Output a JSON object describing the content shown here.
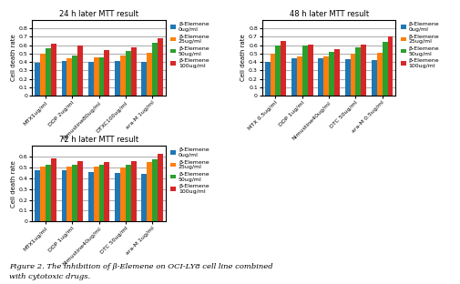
{
  "chart_data": [
    {
      "type": "bar",
      "title": "24 h later MTT result",
      "categories": [
        "MTX1ug/ml",
        "DDP 2ug/ml",
        "Nimustine80ug/ml",
        "DTXC100ug/ml",
        "ara-M 1ug/ml"
      ],
      "series": [
        {
          "name": "β-Elemene\n0ug/ml",
          "values": [
            0.39,
            0.41,
            0.4,
            0.41,
            0.4
          ]
        },
        {
          "name": "β-Elemene\n25ug/ml",
          "values": [
            0.5,
            0.45,
            0.46,
            0.48,
            0.51
          ]
        },
        {
          "name": "β-Elemene\n50ug/ml",
          "values": [
            0.56,
            0.48,
            0.46,
            0.53,
            0.63
          ]
        },
        {
          "name": "β-Elemene\n100ug/ml",
          "values": [
            0.62,
            0.6,
            0.54,
            0.58,
            0.68
          ]
        }
      ],
      "y_label": "Cell death rate",
      "ylim": [
        0,
        0.9
      ],
      "yticks": [
        0,
        0.1,
        0.2,
        0.3,
        0.4,
        0.5,
        0.6,
        0.7,
        0.8
      ],
      "grid": true,
      "legend": "upper left"
    },
    {
      "type": "bar",
      "title": "48 h later MTT result",
      "categories": [
        "MTX 0.5ug/ml",
        "DDP 1ug/ml",
        "Nimustine40ug/ml",
        "DTC 50ug/ml",
        "ara-M 0.5ug/ml"
      ],
      "series": [
        {
          "name": "β-Elemene\n0ug/ml",
          "values": [
            0.4,
            0.44,
            0.44,
            0.43,
            0.42
          ]
        },
        {
          "name": "β-Elemene\n25ug/ml",
          "values": [
            0.5,
            0.47,
            0.47,
            0.5,
            0.51
          ]
        },
        {
          "name": "β-Elemene\n50ug/ml",
          "values": [
            0.6,
            0.6,
            0.52,
            0.58,
            0.64
          ]
        },
        {
          "name": "β-Elemene\n100ug/ml",
          "values": [
            0.65,
            0.61,
            0.55,
            0.61,
            0.7
          ]
        }
      ],
      "y_label": "Cell death rate",
      "ylim": [
        0,
        0.9
      ],
      "yticks": [
        0,
        0.1,
        0.2,
        0.3,
        0.4,
        0.5,
        0.6,
        0.7,
        0.8
      ],
      "grid": true,
      "legend": "upper left"
    },
    {
      "type": "bar",
      "title": "72 h later MTT result",
      "categories": [
        "MTX1ug/ml",
        "DDP 1ug/ml",
        "Nimustine40ug/ml",
        "DTC 50ug/ml",
        "ara-M 1ug/ml"
      ],
      "series": [
        {
          "name": "β-Elemene\n0ug/ml",
          "values": [
            0.47,
            0.47,
            0.46,
            0.45,
            0.44
          ]
        },
        {
          "name": "β-Elemene\n25ug/ml",
          "values": [
            0.51,
            0.51,
            0.51,
            0.5,
            0.55
          ]
        },
        {
          "name": "β-Elemene\n50ug/ml",
          "values": [
            0.52,
            0.52,
            0.52,
            0.52,
            0.57
          ]
        },
        {
          "name": "β-Elemene\n100ug/ml",
          "values": [
            0.58,
            0.56,
            0.55,
            0.56,
            0.62
          ]
        }
      ],
      "y_label": "Cell death rate",
      "ylim": [
        0,
        0.7
      ],
      "yticks": [
        0,
        0.1,
        0.2,
        0.3,
        0.4,
        0.5,
        0.6
      ],
      "grid": true,
      "legend": "upper left"
    }
  ],
  "annotations": [
    "Figure 2. The inhibition of β-Elemene on OCI-LY8 cell line combined",
    "with cytotoxic drugs."
  ]
}
